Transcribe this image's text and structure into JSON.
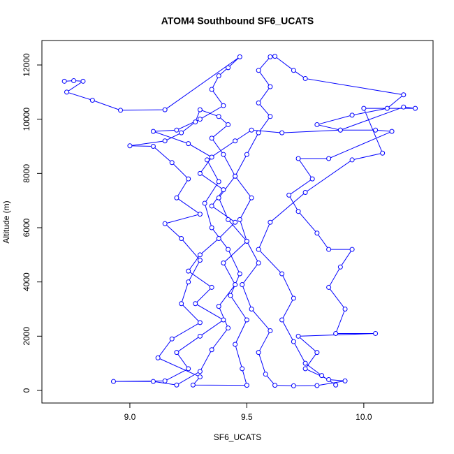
{
  "chart_data": {
    "type": "line",
    "title": "ATOM4 Southbound SF6_UCATS",
    "x_label": "SF6_UCATS",
    "y_label": "Altitude (m)",
    "color": "#0000ff",
    "markers": true,
    "grid": false,
    "xlim": [
      8.624,
      10.296
    ],
    "ylim": [
      -464,
      12902
    ],
    "xticks": [
      {
        "value": 9.0,
        "label": "9.0"
      },
      9.5,
      {
        "value": 10.0,
        "label": "10.0"
      }
    ],
    "yticks": [
      0,
      2000,
      4000,
      6000,
      8000,
      10000,
      12000
    ],
    "x": [
      8.72,
      8.76,
      8.8,
      8.73,
      8.84,
      8.96,
      9.15,
      9.47,
      9.42,
      9.38,
      9.35,
      9.4,
      9.3,
      9.2,
      9.1,
      9.25,
      9.35,
      9.3,
      9.4,
      9.35,
      9.45,
      9.38,
      9.3,
      9.25,
      9.35,
      9.28,
      9.4,
      9.3,
      9.2,
      9.25,
      9.15,
      8.93,
      9.1,
      9.2,
      9.3,
      9.35,
      9.42,
      9.38,
      9.45,
      9.4,
      9.5,
      9.42,
      9.38,
      9.45,
      9.5,
      9.55,
      9.6,
      9.55,
      9.6,
      9.55,
      9.6,
      9.62,
      9.7,
      9.75,
      10.17,
      10.1,
      9.95,
      9.8,
      9.9,
      10.05,
      10.12,
      9.85,
      9.72,
      9.78,
      9.68,
      9.72,
      9.8,
      9.85,
      9.95,
      9.9,
      9.85,
      9.92,
      9.88,
      10.05,
      9.72,
      9.8,
      9.75,
      9.85,
      9.92,
      9.8,
      9.7,
      9.62,
      9.58,
      9.55,
      9.6,
      9.52,
      9.48,
      9.55,
      9.5,
      9.47,
      9.52,
      9.45,
      9.4,
      9.35,
      9.42,
      9.38,
      9.3,
      9.28,
      9.22,
      9.15,
      9.0,
      9.1,
      9.18,
      9.25,
      9.2,
      9.3,
      9.15,
      9.22,
      9.3,
      9.25,
      9.22,
      9.3,
      9.18,
      9.12,
      9.3,
      9.27,
      9.5,
      9.48,
      9.45,
      9.5,
      9.43,
      9.47,
      9.42,
      9.35,
      9.32,
      9.38,
      9.33,
      9.45,
      9.52,
      9.65,
      9.9,
      10.17,
      10.22,
      10.0,
      10.08,
      9.95,
      9.75,
      9.6,
      9.55,
      9.65,
      9.7,
      9.65,
      9.7,
      9.75,
      9.82,
      9.88
    ],
    "values": [
      11400,
      11420,
      11400,
      11000,
      10700,
      10330,
      10350,
      12300,
      11900,
      11600,
      11100,
      10500,
      10000,
      9600,
      9550,
      9100,
      8600,
      8000,
      7400,
      6800,
      6200,
      5600,
      5000,
      4400,
      3800,
      3200,
      2600,
      2000,
      1400,
      800,
      350,
      330,
      330,
      200,
      700,
      1500,
      2300,
      3100,
      3900,
      4700,
      5500,
      6300,
      7100,
      7900,
      8700,
      9500,
      10100,
      10600,
      11200,
      11800,
      12300,
      12320,
      11800,
      11500,
      10900,
      10400,
      10150,
      9800,
      9600,
      9600,
      9550,
      8550,
      8550,
      7800,
      7200,
      6600,
      5800,
      5200,
      5200,
      4550,
      3800,
      3000,
      2100,
      2100,
      2000,
      1400,
      800,
      400,
      350,
      180,
      170,
      190,
      600,
      1400,
      2200,
      3000,
      3900,
      4700,
      5500,
      6300,
      7100,
      7900,
      8700,
      9300,
      9800,
      10100,
      10350,
      9900,
      9500,
      9200,
      9020,
      9000,
      8400,
      7800,
      7100,
      6500,
      6150,
      5600,
      4800,
      4000,
      3200,
      2500,
      1900,
      1200,
      500,
      200,
      190,
      800,
      1700,
      2600,
      3500,
      4300,
      5200,
      6000,
      6900,
      7700,
      8500,
      9200,
      9600,
      9500,
      9600,
      10450,
      10400,
      10400,
      8750,
      8500,
      7300,
      6200,
      5200,
      4300,
      3400,
      2600,
      1800,
      1000,
      550,
      200
    ]
  }
}
